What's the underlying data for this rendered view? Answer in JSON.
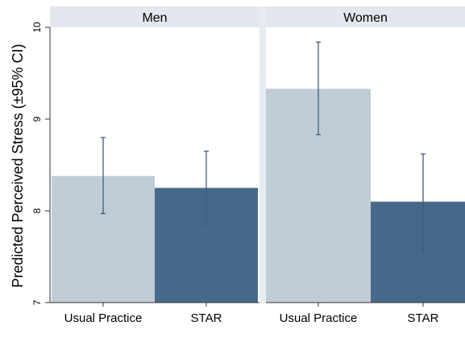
{
  "chart_data": {
    "type": "bar",
    "ylabel": "Predicted Perceived Stress (±95% CI)",
    "ylim": [
      7,
      10
    ],
    "yticks": [
      7,
      8,
      9,
      10
    ],
    "grid": false,
    "panels": [
      {
        "title": "Men",
        "categories": [
          "Usual Practice",
          "STAR"
        ],
        "values": [
          8.38,
          8.25
        ],
        "ci_low": [
          7.97,
          7.85
        ],
        "ci_high": [
          8.8,
          8.65
        ]
      },
      {
        "title": "Women",
        "categories": [
          "Usual Practice",
          "STAR"
        ],
        "values": [
          9.33,
          8.1
        ],
        "ci_low": [
          8.83,
          7.56
        ],
        "ci_high": [
          9.84,
          8.62
        ]
      }
    ],
    "colors": {
      "Usual Practice": "#c0ccd6",
      "STAR": "#46698b",
      "error_bar": "#3f5d7c",
      "panel_header": "#e2e8ee",
      "panel_gap": "#e6ecf1",
      "axis": "#333333",
      "text": "#000000"
    }
  }
}
